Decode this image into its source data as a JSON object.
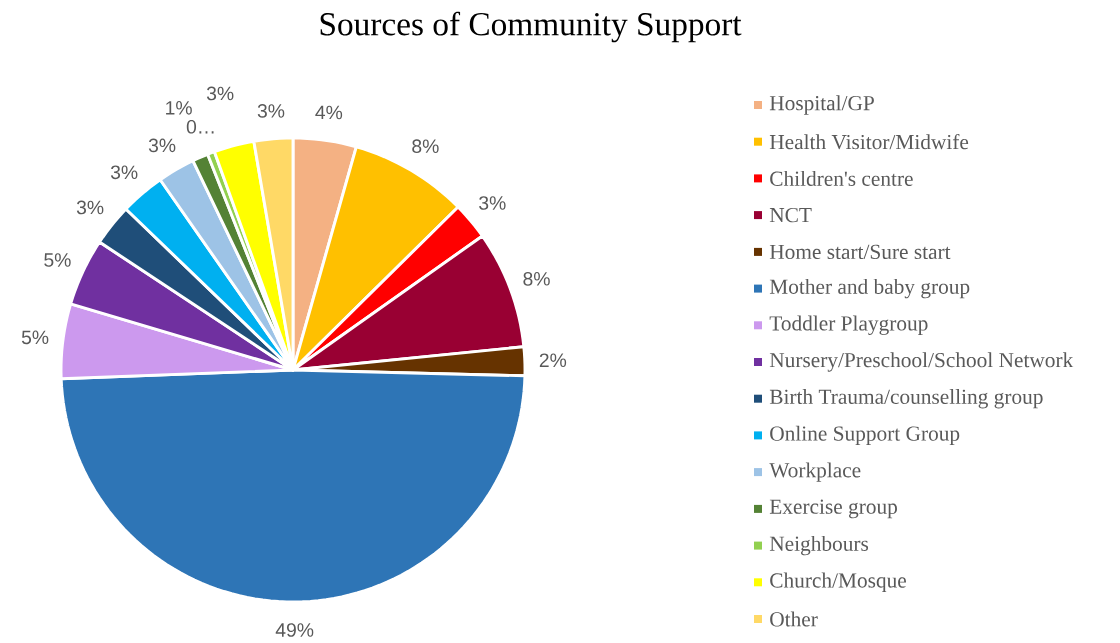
{
  "chart_data": {
    "type": "pie",
    "title": "Sources of Community Support",
    "categories": [
      "Hospital/GP",
      "Health Visitor/Midwife",
      "Children's centre",
      "NCT",
      "Home start/Sure start",
      "Mother and baby group",
      "Toddler Playgroup",
      "Nursery/Preschool/School Network",
      "Birth Trauma/counselling group",
      "Online Support Group",
      "Workplace",
      "Exercise group",
      "Neighbours",
      "Church/Mosque",
      "Other"
    ],
    "values": [
      4.4,
      8.2,
      2.6,
      8.2,
      2.0,
      49,
      5.2,
      4.7,
      2.9,
      3.1,
      2.6,
      1.1,
      0.5,
      2.8,
      2.7
    ],
    "value_labels": [
      "4%",
      "8%",
      "3%",
      "8%",
      "2%",
      "49%",
      "5%",
      "5%",
      "3%",
      "3%",
      "3%",
      "1%",
      "0…",
      "3%",
      "3%"
    ],
    "colors": [
      "#f4b183",
      "#ffc000",
      "#ff0000",
      "#990033",
      "#663300",
      "#2e75b6",
      "#cc99ee",
      "#7030a0",
      "#1f4e79",
      "#00b0f0",
      "#9dc3e6",
      "#548235",
      "#92d050",
      "#ffff00",
      "#ffd966"
    ],
    "legend": "right"
  }
}
